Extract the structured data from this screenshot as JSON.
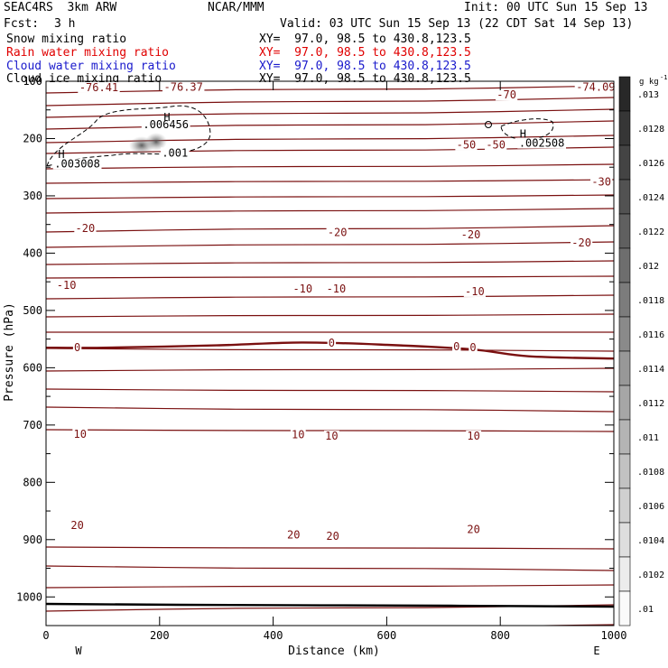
{
  "header": {
    "model": "SEAC4RS  3km ARW",
    "org": "NCAR/MMM",
    "init": "Init: 00 UTC Sun 15 Sep 13",
    "fcst_label": "Fcst:",
    "fcst_value": "3 h",
    "valid": "Valid: 03 UTC Sun 15 Sep 13 (22 CDT Sat 14 Sep 13)",
    "fields": [
      {
        "name": "Snow mixing ratio",
        "xy": "XY=  97.0, 98.5 to 430.8,123.5",
        "color": "#000000"
      },
      {
        "name": "Rain water mixing ratio",
        "xy": "XY=  97.0, 98.5 to 430.8,123.5",
        "color": "#e00000"
      },
      {
        "name": "Cloud water mixing ratio",
        "xy": "XY=  97.0, 98.5 to 430.8,123.5",
        "color": "#1a1acc"
      },
      {
        "name": "Cloud ice mixing ratio",
        "xy": "XY=  97.0, 98.5 to 430.8,123.5",
        "color": "#000000"
      }
    ]
  },
  "colors": {
    "temperature": "#7a1010",
    "axes": "#000000"
  },
  "chart_data": {
    "type": "contour",
    "xlabel": "Distance (km)",
    "ylabel": "Pressure (hPa)",
    "xlim": [
      0,
      1000
    ],
    "ylim": [
      1050,
      100
    ],
    "x_ticks": [
      0,
      200,
      400,
      600,
      800,
      1000
    ],
    "x_tick_labels": [
      "0",
      "200",
      "400",
      "600",
      "800",
      "1000"
    ],
    "y_ticks": [
      200,
      300,
      400,
      500,
      600,
      700,
      800,
      900,
      1000
    ],
    "y_tick_labels": [
      "200",
      "300",
      "400",
      "500",
      "600",
      "700",
      "800",
      "900",
      "1000"
    ],
    "top_tick_label": "100",
    "endpoints": {
      "left": "W",
      "right": "E"
    },
    "temperature_contours": [
      {
        "value": 0,
        "x": [
          0,
          100,
          300,
          450,
          600,
          750,
          850,
          1000
        ],
        "p": [
          565,
          565,
          561,
          556,
          560,
          568,
          580,
          584
        ]
      }
    ],
    "temperature_labels": [
      {
        "text": "-76.41",
        "x": 93,
        "p": 111
      },
      {
        "text": "-76.37",
        "x": 242,
        "p": 110
      },
      {
        "text": "-74.09",
        "x": 968,
        "p": 110
      },
      {
        "text": "-70",
        "x": 811,
        "p": 124
      },
      {
        "text": "-50",
        "x": 740,
        "p": 211
      },
      {
        "text": "-50",
        "x": 792,
        "p": 211
      },
      {
        "text": "-30",
        "x": 978,
        "p": 276
      },
      {
        "text": "-20",
        "x": 69,
        "p": 357
      },
      {
        "text": "-20",
        "x": 513,
        "p": 364
      },
      {
        "text": "-20",
        "x": 748,
        "p": 368
      },
      {
        "text": "-20",
        "x": 943,
        "p": 382
      },
      {
        "text": "-10",
        "x": 36,
        "p": 456
      },
      {
        "text": "-10",
        "x": 452,
        "p": 462
      },
      {
        "text": "-10",
        "x": 511,
        "p": 462
      },
      {
        "text": "-10",
        "x": 755,
        "p": 467
      },
      {
        "text": "0",
        "x": 55,
        "p": 565
      },
      {
        "text": "0",
        "x": 503,
        "p": 557
      },
      {
        "text": "0",
        "x": 723,
        "p": 563
      },
      {
        "text": "0",
        "x": 752,
        "p": 565
      },
      {
        "text": "10",
        "x": 60,
        "p": 716
      },
      {
        "text": "10",
        "x": 444,
        "p": 717
      },
      {
        "text": "10",
        "x": 503,
        "p": 719
      },
      {
        "text": "10",
        "x": 753,
        "p": 719
      },
      {
        "text": "20",
        "x": 55,
        "p": 875
      },
      {
        "text": "20",
        "x": 436,
        "p": 892
      },
      {
        "text": "20",
        "x": 505,
        "p": 894
      },
      {
        "text": "20",
        "x": 753,
        "p": 882
      }
    ],
    "ice_contour_labels": [
      {
        "text": ".006456",
        "x": 211,
        "p": 176
      },
      {
        "text": ".001",
        "x": 227,
        "p": 225
      },
      {
        "text": ".003008",
        "x": 55,
        "p": 244
      },
      {
        "text": ".002508",
        "x": 873,
        "p": 208
      }
    ],
    "maxima": [
      {
        "text": "H",
        "x": 213,
        "p": 163
      },
      {
        "text": "H",
        "x": 27,
        "p": 228
      },
      {
        "text": "H",
        "x": 840,
        "p": 192
      }
    ],
    "colorbar": {
      "unit": "g kg",
      "unit_exponent": "-1",
      "ticks": [
        ".013",
        ".0128",
        ".0126",
        ".0124",
        ".0122",
        ".012",
        ".0118",
        ".0116",
        ".0114",
        ".0112",
        ".011",
        ".0108",
        ".0106",
        ".0104",
        ".0102",
        ".01"
      ]
    }
  }
}
